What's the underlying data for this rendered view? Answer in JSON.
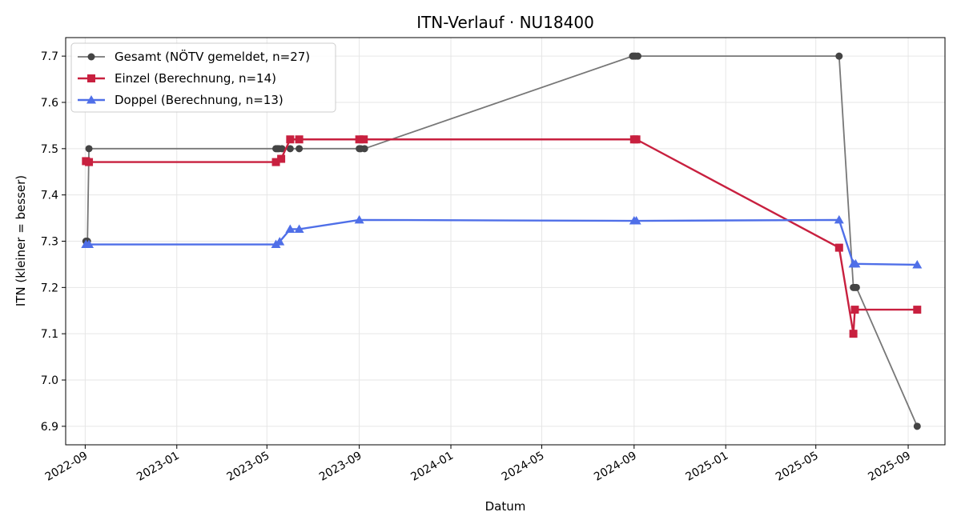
{
  "chart_data": {
    "type": "line",
    "title": "ITN-Verlauf · NU18400",
    "xlabel": "Datum",
    "ylabel": "ITN  (kleiner = besser)",
    "xlim": [
      "2022-08-06",
      "2025-10-20"
    ],
    "ylim": [
      6.86,
      7.74
    ],
    "x_ticks": [
      "2022-09",
      "2023-01",
      "2023-05",
      "2023-09",
      "2024-01",
      "2024-05",
      "2024-09",
      "2025-01",
      "2025-05",
      "2025-09"
    ],
    "y_ticks": [
      6.9,
      7.0,
      7.1,
      7.2,
      7.3,
      7.4,
      7.5,
      7.6,
      7.7
    ],
    "grid": true,
    "legend_position": "upper-left",
    "series": [
      {
        "name": "Gesamt (NÖTV gemeldet, n=27)",
        "color": "#777777",
        "marker": "circle",
        "marker_color": "#444444",
        "points": [
          {
            "x": "2022-09-02",
            "y": 7.3
          },
          {
            "x": "2022-09-04",
            "y": 7.3
          },
          {
            "x": "2022-09-06",
            "y": 7.5
          },
          {
            "x": "2023-05-13",
            "y": 7.5
          },
          {
            "x": "2023-05-15",
            "y": 7.5
          },
          {
            "x": "2023-05-17",
            "y": 7.5
          },
          {
            "x": "2023-05-21",
            "y": 7.5
          },
          {
            "x": "2023-06-01",
            "y": 7.5
          },
          {
            "x": "2023-06-13",
            "y": 7.5
          },
          {
            "x": "2023-09-01",
            "y": 7.5
          },
          {
            "x": "2023-09-03",
            "y": 7.5
          },
          {
            "x": "2023-09-08",
            "y": 7.5
          },
          {
            "x": "2024-08-30",
            "y": 7.7
          },
          {
            "x": "2024-09-01",
            "y": 7.7
          },
          {
            "x": "2024-09-03",
            "y": 7.7
          },
          {
            "x": "2024-09-06",
            "y": 7.7
          },
          {
            "x": "2025-06-01",
            "y": 7.7
          },
          {
            "x": "2025-06-20",
            "y": 7.2
          },
          {
            "x": "2025-06-22",
            "y": 7.2
          },
          {
            "x": "2025-06-24",
            "y": 7.2
          },
          {
            "x": "2025-09-13",
            "y": 6.9
          }
        ]
      },
      {
        "name": "Einzel (Berechnung, n=14)",
        "color": "#c8203f",
        "marker": "square",
        "marker_color": "#c8203f",
        "points": [
          {
            "x": "2022-09-02",
            "y": 7.473
          },
          {
            "x": "2022-09-06",
            "y": 7.471
          },
          {
            "x": "2023-05-13",
            "y": 7.471
          },
          {
            "x": "2023-05-20",
            "y": 7.478
          },
          {
            "x": "2023-06-01",
            "y": 7.52
          },
          {
            "x": "2023-06-13",
            "y": 7.52
          },
          {
            "x": "2023-09-01",
            "y": 7.52
          },
          {
            "x": "2023-09-07",
            "y": 7.52
          },
          {
            "x": "2024-09-01",
            "y": 7.52
          },
          {
            "x": "2024-09-04",
            "y": 7.52
          },
          {
            "x": "2025-06-01",
            "y": 7.286
          },
          {
            "x": "2025-06-20",
            "y": 7.1
          },
          {
            "x": "2025-06-22",
            "y": 7.152
          },
          {
            "x": "2025-09-13",
            "y": 7.152
          }
        ]
      },
      {
        "name": "Doppel (Berechnung, n=13)",
        "color": "#4f6fe8",
        "marker": "triangle",
        "marker_color": "#4f6fe8",
        "points": [
          {
            "x": "2022-09-02",
            "y": 7.293
          },
          {
            "x": "2022-09-06",
            "y": 7.293
          },
          {
            "x": "2023-05-13",
            "y": 7.293
          },
          {
            "x": "2023-05-18",
            "y": 7.299
          },
          {
            "x": "2023-06-01",
            "y": 7.326
          },
          {
            "x": "2023-06-13",
            "y": 7.326
          },
          {
            "x": "2023-09-01",
            "y": 7.346
          },
          {
            "x": "2024-09-01",
            "y": 7.344
          },
          {
            "x": "2024-09-04",
            "y": 7.344
          },
          {
            "x": "2025-06-01",
            "y": 7.346
          },
          {
            "x": "2025-06-20",
            "y": 7.251
          },
          {
            "x": "2025-06-23",
            "y": 7.251
          },
          {
            "x": "2025-09-13",
            "y": 7.249
          }
        ]
      }
    ]
  }
}
